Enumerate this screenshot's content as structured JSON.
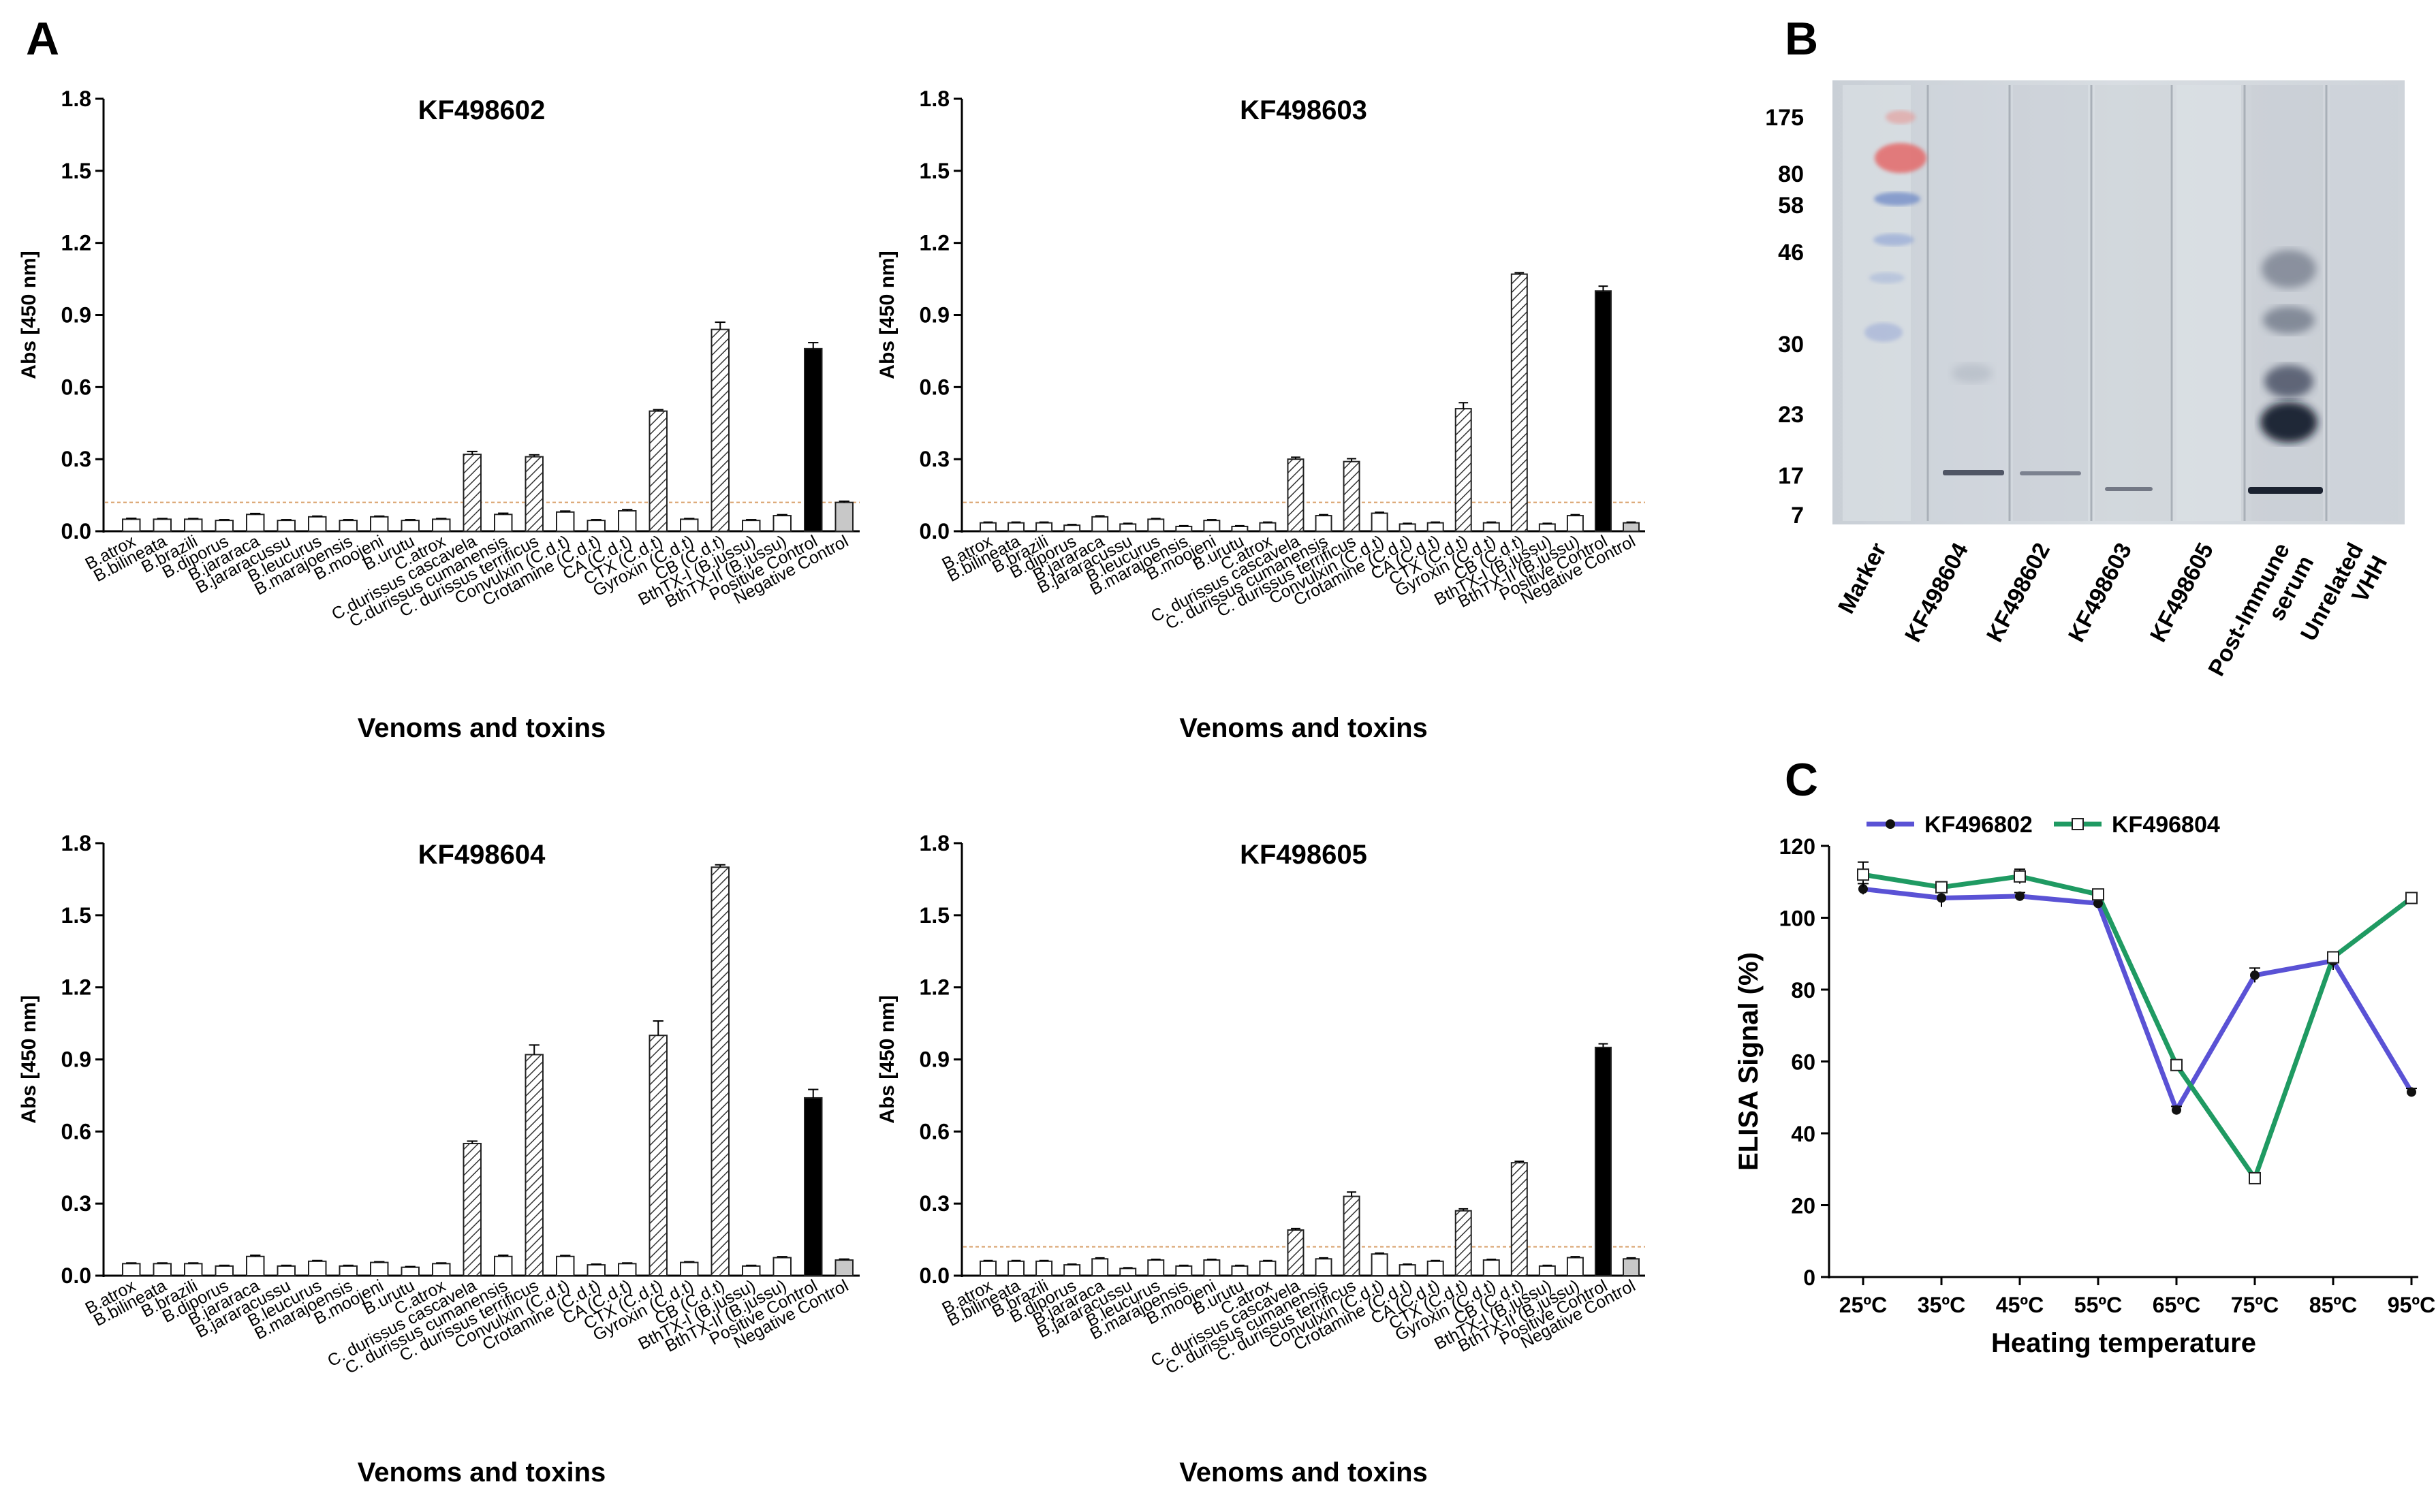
{
  "panels": {
    "A": "A",
    "B": "B",
    "C": "C"
  },
  "colors": {
    "line_kf496802": "#5a52d5",
    "line_kf496804": "#1f9a62",
    "cutoff": "#d9a06a",
    "positive": "#000000",
    "negative": "#c8c8c8"
  },
  "chart_data": [
    {
      "type": "bar",
      "panel": "A",
      "title": "KF498602",
      "xlabel": "Venoms and toxins",
      "ylabel": "Abs [450 nm]",
      "ylim": [
        0,
        1.8
      ],
      "yticks": [
        "0.0",
        "0.3",
        "0.6",
        "0.9",
        "1.2",
        "1.5",
        "1.8"
      ],
      "cutoff": 0.12,
      "categories": [
        "B.atrox",
        "B.bilineata",
        "B.brazili",
        "B.diporus",
        "B.jararaca",
        "B.jararacussu",
        "B.leucurus",
        "B.marajoensis",
        "B.moojeni",
        "B.urutu",
        "C.atrox",
        "C.durissus cascavela",
        "C.durissus cumanensis",
        "C. durissus terrificus",
        "Convulxin (C.d.t)",
        "Crotamine (C.d.t)",
        "CA (C.d.t)",
        "CTX (C.d.t)",
        "Gyroxin (C.d.t)",
        "CB (C.d.t)",
        "BthTX-I (B.jussu)",
        "BthTX-II (B.jussu)",
        "Positive Control",
        "Negative Control"
      ],
      "values": [
        0.05,
        0.05,
        0.05,
        0.045,
        0.07,
        0.045,
        0.06,
        0.045,
        0.06,
        0.045,
        0.05,
        0.32,
        0.07,
        0.31,
        0.08,
        0.045,
        0.085,
        0.5,
        0.05,
        0.84,
        0.045,
        0.065,
        0.76,
        0.12
      ],
      "errors": [
        0.004,
        0.003,
        0.003,
        0.003,
        0.004,
        0.003,
        0.003,
        0.003,
        0.003,
        0.003,
        0.003,
        0.012,
        0.005,
        0.008,
        0.004,
        0.003,
        0.005,
        0.006,
        0.003,
        0.03,
        0.003,
        0.004,
        0.025,
        0.005
      ],
      "kinds": [
        "open",
        "open",
        "open",
        "open",
        "open",
        "open",
        "open",
        "open",
        "open",
        "open",
        "open",
        "hatch",
        "open",
        "hatch",
        "open",
        "open",
        "open",
        "hatch",
        "open",
        "hatch",
        "open",
        "open",
        "positive",
        "negative"
      ]
    },
    {
      "type": "bar",
      "panel": "A",
      "title": "KF498603",
      "xlabel": "Venoms and toxins",
      "ylabel": "Abs [450 nm]",
      "ylim": [
        0,
        1.8
      ],
      "yticks": [
        "0.0",
        "0.3",
        "0.6",
        "0.9",
        "1.2",
        "1.5",
        "1.8"
      ],
      "cutoff": 0.12,
      "categories": [
        "B.atrox",
        "B.bilineata",
        "B.brazili",
        "B.diporus",
        "B.jararaca",
        "B.jararacussu",
        "B.leucurus",
        "B.marajoensis",
        "B.moojeni",
        "B.urutu",
        "C.atrox",
        "C. durissus cascavela",
        "C. durissus cumanensis",
        "C. durissus terrificus",
        "Convulxin (C.d.t)",
        "Crotamine (C.d.t)",
        "CA (C.d.t)",
        "CTX (C.d.t)",
        "Gyroxin (C.d.t)",
        "CB (C.d.t)",
        "BthTX-I (B.jussu)",
        "BthTX-II (B.jussu)",
        "Positive Control",
        "Negative Control"
      ],
      "values": [
        0.035,
        0.035,
        0.035,
        0.025,
        0.06,
        0.03,
        0.05,
        0.02,
        0.045,
        0.02,
        0.035,
        0.3,
        0.065,
        0.29,
        0.075,
        0.03,
        0.035,
        0.51,
        0.035,
        1.07,
        0.03,
        0.065,
        1.0,
        0.035
      ],
      "errors": [
        0.003,
        0.003,
        0.003,
        0.003,
        0.004,
        0.003,
        0.003,
        0.003,
        0.003,
        0.003,
        0.003,
        0.008,
        0.004,
        0.012,
        0.004,
        0.003,
        0.003,
        0.025,
        0.003,
        0.006,
        0.003,
        0.004,
        0.02,
        0.003
      ],
      "kinds": [
        "open",
        "open",
        "open",
        "open",
        "open",
        "open",
        "open",
        "open",
        "open",
        "open",
        "open",
        "hatch",
        "open",
        "hatch",
        "open",
        "open",
        "open",
        "hatch",
        "open",
        "hatch",
        "open",
        "open",
        "positive",
        "negative"
      ]
    },
    {
      "type": "bar",
      "panel": "A",
      "title": "KF498604",
      "xlabel": "Venoms and toxins",
      "ylabel": "Abs [450 nm]",
      "ylim": [
        0,
        1.8
      ],
      "yticks": [
        "0.0",
        "0.3",
        "0.6",
        "0.9",
        "1.2",
        "1.5",
        "1.8"
      ],
      "cutoff": null,
      "categories": [
        "B.atrox",
        "B.bilineata",
        "B.brazili",
        "B.diporus",
        "B.jararaca",
        "B.jararacussu",
        "B.leucurus",
        "B.marajoensis",
        "B.moojeni",
        "B.urutu",
        "C.atrox",
        "C. durissus cascavela",
        "C. durissus cumanensis",
        "C. durissus terrificus",
        "Convulxin (C.d.t)",
        "Crotamine (C.d.t)",
        "CA (C.d.t)",
        "CTX (C.d.t)",
        "Gyroxin (C.d.t)",
        "CB (C.d.t)",
        "BthTX-I (B.jussu)",
        "BthTX-II (B.jussu)",
        "Positive Control",
        "Negative Control"
      ],
      "values": [
        0.05,
        0.05,
        0.05,
        0.04,
        0.08,
        0.04,
        0.06,
        0.04,
        0.055,
        0.035,
        0.05,
        0.55,
        0.08,
        0.92,
        0.08,
        0.045,
        0.05,
        1.0,
        0.055,
        1.7,
        0.04,
        0.075,
        0.74,
        0.065
      ],
      "errors": [
        0.003,
        0.003,
        0.003,
        0.003,
        0.005,
        0.003,
        0.003,
        0.003,
        0.003,
        0.003,
        0.003,
        0.01,
        0.005,
        0.04,
        0.004,
        0.003,
        0.003,
        0.06,
        0.003,
        0.01,
        0.003,
        0.004,
        0.035,
        0.004
      ],
      "kinds": [
        "open",
        "open",
        "open",
        "open",
        "open",
        "open",
        "open",
        "open",
        "open",
        "open",
        "open",
        "hatch",
        "open",
        "hatch",
        "open",
        "open",
        "open",
        "hatch",
        "open",
        "hatch",
        "open",
        "open",
        "positive",
        "negative"
      ]
    },
    {
      "type": "bar",
      "panel": "A",
      "title": "KF498605",
      "xlabel": "Venoms and toxins",
      "ylabel": "Abs [450 nm]",
      "ylim": [
        0,
        1.8
      ],
      "yticks": [
        "0.0",
        "0.3",
        "0.6",
        "0.9",
        "1.2",
        "1.5",
        "1.8"
      ],
      "cutoff": 0.12,
      "categories": [
        "B.atrox",
        "B.bilineata",
        "B.brazili",
        "B.diporus",
        "B.jararaca",
        "B.jararacussu",
        "B.leucurus",
        "B.marajoensis",
        "B.moojeni",
        "B.urutu",
        "C.atrox",
        "C. durissus cascavela",
        "C. durissus cumanensis",
        "C. durissus terrificus",
        "Convulxin (C.d.t)",
        "Crotamine (C.d.t)",
        "CA (C.d.t)",
        "CTX (C.d.t)",
        "Gyroxin (C.d.t)",
        "CB (C.d.t)",
        "BthTX-I (B.jussu)",
        "BthTX-II (B.jussu)",
        "Positive Control",
        "Negative Control"
      ],
      "values": [
        0.06,
        0.06,
        0.06,
        0.045,
        0.07,
        0.03,
        0.065,
        0.04,
        0.065,
        0.04,
        0.06,
        0.19,
        0.07,
        0.33,
        0.09,
        0.045,
        0.06,
        0.27,
        0.065,
        0.47,
        0.04,
        0.075,
        0.95,
        0.07
      ],
      "errors": [
        0.003,
        0.003,
        0.003,
        0.003,
        0.004,
        0.003,
        0.003,
        0.003,
        0.003,
        0.003,
        0.003,
        0.006,
        0.004,
        0.018,
        0.004,
        0.003,
        0.003,
        0.008,
        0.003,
        0.006,
        0.003,
        0.004,
        0.015,
        0.004
      ],
      "kinds": [
        "open",
        "open",
        "open",
        "open",
        "open",
        "open",
        "open",
        "open",
        "open",
        "open",
        "open",
        "hatch",
        "open",
        "hatch",
        "open",
        "open",
        "open",
        "hatch",
        "open",
        "hatch",
        "open",
        "open",
        "positive",
        "negative"
      ]
    },
    {
      "type": "line",
      "panel": "C",
      "xlabel": "Heating temperature",
      "ylabel": "ELISA Signal (%)",
      "ylim": [
        0,
        120
      ],
      "yticks": [
        "0",
        "20",
        "40",
        "60",
        "80",
        "100",
        "120"
      ],
      "categories": [
        "25ºC",
        "35ºC",
        "45ºC",
        "55ºC",
        "65ºC",
        "75ºC",
        "85ºC",
        "95ºC"
      ],
      "legend_position": "top-left",
      "series": [
        {
          "name": "KF496802",
          "marker": "filled-circle",
          "values": [
            108,
            105.5,
            106,
            104,
            46.5,
            84,
            88,
            51.5
          ],
          "errors": [
            1.5,
            2.5,
            1,
            1,
            1,
            2,
            2.5,
            1
          ]
        },
        {
          "name": "KF496804",
          "marker": "open-square",
          "values": [
            112,
            108.5,
            111.5,
            106.5,
            59,
            27.5,
            89,
            105.5
          ],
          "errors": [
            3.5,
            1.5,
            2,
            1,
            1.5,
            1,
            1,
            1
          ]
        }
      ]
    }
  ],
  "blot": {
    "lanes": [
      "Marker",
      "KF498604",
      "KF498602",
      "KF498603",
      "KF498605",
      "Post-Immune serum",
      "Unrelated VHH"
    ],
    "mw_markers": [
      "175",
      "80",
      "58",
      "46",
      "30",
      "23",
      "17",
      "7"
    ]
  }
}
